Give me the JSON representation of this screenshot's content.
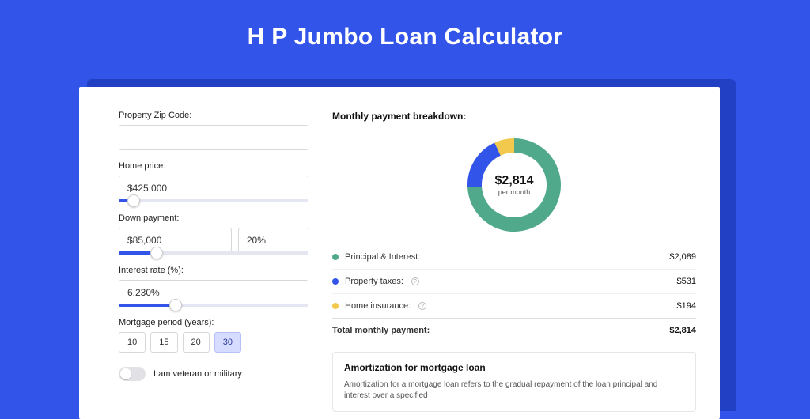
{
  "page": {
    "title": "H P Jumbo Loan Calculator",
    "bg_color": "#3254e8",
    "shadow_color": "#2240c4",
    "card_bg": "#ffffff"
  },
  "form": {
    "zip": {
      "label": "Property Zip Code:",
      "value": ""
    },
    "home_price": {
      "label": "Home price:",
      "value": "$425,000",
      "slider_pct": 8
    },
    "down_payment": {
      "label": "Down payment:",
      "amount": "$85,000",
      "pct": "20%",
      "slider_pct": 20
    },
    "interest_rate": {
      "label": "Interest rate (%):",
      "value": "6.230%",
      "slider_pct": 30
    },
    "mortgage_period": {
      "label": "Mortgage period (years):",
      "options": [
        "10",
        "15",
        "20",
        "30"
      ],
      "selected": "30"
    },
    "veteran": {
      "label": "I am veteran or military",
      "checked": false
    }
  },
  "breakdown": {
    "title": "Monthly payment breakdown:",
    "donut": {
      "value": "$2,814",
      "subtitle": "per month",
      "slices": [
        {
          "label": "Principal & Interest",
          "color": "#50a98b",
          "pct": 74.2
        },
        {
          "label": "Property taxes",
          "color": "#3254e8",
          "pct": 18.9
        },
        {
          "label": "Home insurance",
          "color": "#f2c94c",
          "pct": 6.9
        }
      ],
      "stroke_width": 18,
      "radius": 50,
      "bg": "#ffffff"
    },
    "rows": [
      {
        "label": "Principal & Interest:",
        "value": "$2,089",
        "color": "#50a98b",
        "info": false
      },
      {
        "label": "Property taxes:",
        "value": "$531",
        "color": "#3254e8",
        "info": true
      },
      {
        "label": "Home insurance:",
        "value": "$194",
        "color": "#f2c94c",
        "info": true
      }
    ],
    "total": {
      "label": "Total monthly payment:",
      "value": "$2,814"
    }
  },
  "amortization": {
    "title": "Amortization for mortgage loan",
    "text": "Amortization for a mortgage loan refers to the gradual repayment of the loan principal and interest over a specified"
  }
}
